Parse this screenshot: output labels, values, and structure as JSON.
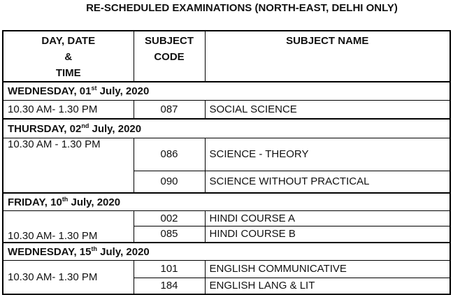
{
  "title": "RE-SCHEDULED EXAMINATIONS (NORTH-EAST, DELHI ONLY)",
  "headers": {
    "col1": [
      "DAY, DATE",
      "&",
      "TIME"
    ],
    "col2": [
      "SUBJECT",
      "CODE"
    ],
    "col3": "SUBJECT NAME"
  },
  "days": [
    {
      "day": "WEDNESDAY, 01",
      "sup": "st",
      "rest": " July, 2020",
      "time": "10.30 AM- 1.30 PM",
      "subjects": [
        {
          "code": "087",
          "name": "SOCIAL SCIENCE"
        }
      ]
    },
    {
      "day": "THURSDAY, 02",
      "sup": "nd",
      "rest": " July, 2020",
      "time": "10.30 AM - 1.30 PM",
      "subjects": [
        {
          "code": "086",
          "name": "SCIENCE - THEORY"
        },
        {
          "code": "090",
          "name": "SCIENCE WITHOUT PRACTICAL"
        }
      ]
    },
    {
      "day": "FRIDAY, 10",
      "sup": "th",
      "rest": " July, 2020",
      "time": "10.30 AM- 1.30 PM",
      "subjects": [
        {
          "code": "002",
          "name": "HINDI COURSE A"
        },
        {
          "code": "085",
          "name": "HINDI COURSE B"
        }
      ]
    },
    {
      "day": "WEDNESDAY, 15",
      "sup": "th",
      "rest": " July, 2020",
      "time": "10.30 AM- 1.30 PM",
      "subjects": [
        {
          "code": "101",
          "name": "ENGLISH COMMUNICATIVE"
        },
        {
          "code": "184",
          "name": "ENGLISH LANG & LIT"
        }
      ]
    }
  ]
}
